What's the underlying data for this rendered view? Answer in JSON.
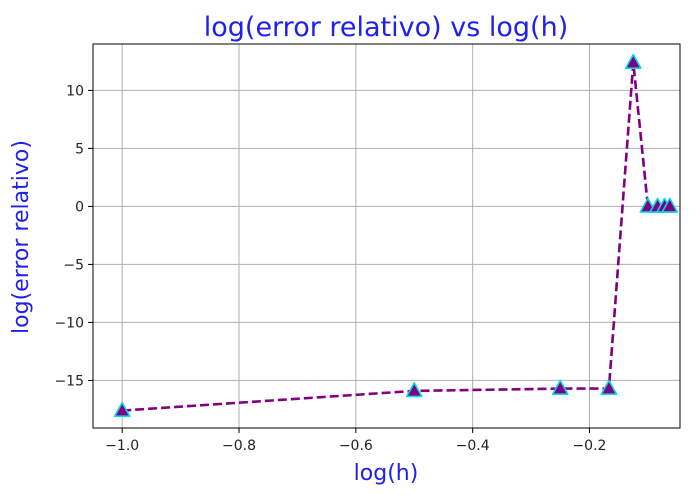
{
  "chart_data": {
    "type": "line",
    "title": "log(error relativo) vs log(h)",
    "xlabel": "log(h)",
    "ylabel": "log(error relativo)",
    "xlim": [
      -1.05,
      -0.045
    ],
    "ylim": [
      -19.1,
      14.0
    ],
    "xticks": [
      -1.0,
      -0.8,
      -0.6,
      -0.4,
      -0.2
    ],
    "xtick_labels": [
      "−1.0",
      "−0.8",
      "−0.6",
      "−0.4",
      "−0.2"
    ],
    "yticks": [
      10,
      5,
      0,
      -5,
      -10,
      -15
    ],
    "ytick_labels": [
      "10",
      "5",
      "0",
      "−5",
      "−10",
      "−15"
    ],
    "grid": true,
    "series": [
      {
        "x": [
          -1.0,
          -0.5,
          -0.25,
          -0.1667,
          -0.125,
          -0.1,
          -0.0833,
          -0.0714,
          -0.0625
        ],
        "y": [
          -17.6,
          -15.9,
          -15.7,
          -15.7,
          12.4,
          0.0,
          0.0,
          0.0,
          0.0
        ],
        "line_style": "dashed",
        "marker": "triangle"
      }
    ],
    "colors": {
      "line": "#800080",
      "marker_fill": "#800080",
      "marker_edge": "#00ddee",
      "title": "#2020ee",
      "axis_label": "#2020ee",
      "grid": "#b0b0b0"
    }
  }
}
